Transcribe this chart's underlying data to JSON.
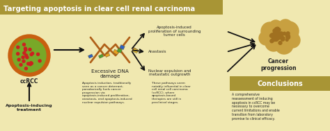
{
  "title": "Targeting apoptosis in clear cell renal carcinoma",
  "title_bg": "#a89535",
  "main_bg": "#f0e8b0",
  "conclusions_bg": "#a89535",
  "body_text_color": "#333333",
  "title_text_color": "#ffffff",
  "node_label_ccRCC": "ccRCC",
  "node_label_dna": "Excessive DNA\ndamage",
  "node_label_apoptosis_treatment": "Apoptosis-inducing\ntreatment",
  "effect1": "Apoptosis-induced\nproliferation of surrounding\ntumor cells",
  "effect2": "Anastasis",
  "effect3": "Nuclear expulsion and\nmetastatic outgrowth",
  "cancer_prog": "Cancer\nprogression",
  "conclusions_title": "Conclusions",
  "text_box1": "Apoptosis induction, traditionally\nseen as a cancer deterrant,\nparadoxically fuels cancer\nprogression via\napoptosis-induced proliferation,\nanastasis, and apoptosis-induced\nnuclear expulsion pathways.",
  "text_box2": "These pathways seem\nnotably influential in clear\ncell renal cell carcinoma\n(ccRCC), where\napoptosis-based\ntherapies are still in\npreclinical stages.",
  "text_box3": "A comprehensive\nreassessment of inducing\napoptosis in ccRCC may be\nnecessary to overcome\ncurrent limitations and enable\ntransition from laboratory\npromise to clinical efficacy.",
  "arrow_color": "#111111",
  "tumor_color_outer": "#c86010",
  "tumor_color_inner": "#78a828",
  "tumor_dot_color": "#cc2020",
  "dna_helix_color": "#b06018",
  "dna_bar_colors": [
    "#e8a020",
    "#3060c0",
    "#50a030",
    "#cc3020",
    "#e8c030",
    "#3060c0",
    "#50a030"
  ],
  "cancer_blob_color": "#c8a040",
  "cancer_blob_dark": "#a07020"
}
